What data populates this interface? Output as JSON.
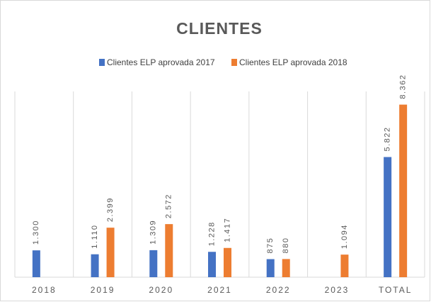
{
  "chart_data": {
    "type": "bar",
    "title": "CLIENTES",
    "categories": [
      "2018",
      "2019",
      "2020",
      "2021",
      "2022",
      "2023",
      "TOTAL"
    ],
    "series": [
      {
        "name": "Clientes ELP aprovada 2017",
        "color": "#4472c4",
        "values": [
          1300,
          1110,
          1309,
          1228,
          875,
          null,
          5822
        ],
        "value_labels": [
          "1.300",
          "1.110",
          "1.309",
          "1.228",
          "875",
          null,
          "5.822"
        ]
      },
      {
        "name": "Clientes ELP aprovada 2018",
        "color": "#ed7d31",
        "values": [
          null,
          2399,
          2572,
          1417,
          880,
          1094,
          8362
        ],
        "value_labels": [
          null,
          "2.399",
          "2.572",
          "1.417",
          "880",
          "1.094",
          "8.362"
        ]
      }
    ],
    "ylim": [
      0,
      9000
    ],
    "legend": "top"
  }
}
